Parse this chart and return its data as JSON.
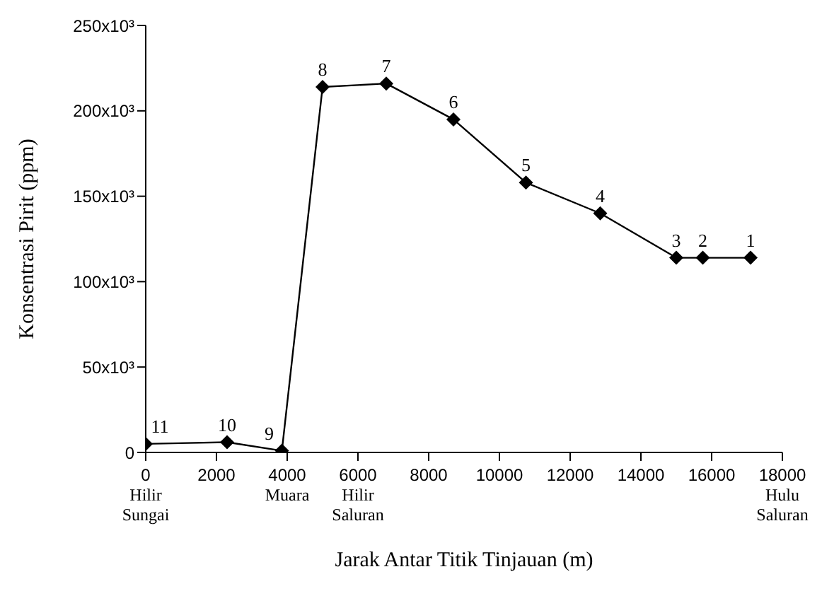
{
  "chart_data": {
    "type": "line",
    "xlabel": "Jarak Antar Titik Tinjauan (m)",
    "ylabel": "Konsentrasi Pirit (ppm)",
    "x": [
      0,
      2300,
      3850,
      5000,
      6800,
      8700,
      10750,
      12850,
      15000,
      15750,
      17100
    ],
    "series": [
      {
        "color": "#000000",
        "values": [
          5000,
          6000,
          1000,
          214000,
          216000,
          195000,
          158000,
          140000,
          114000,
          114000,
          114000
        ]
      }
    ],
    "xlim": [
      0,
      18000
    ],
    "xticks": [
      {
        "value": 0,
        "label": "0\nHilir\nSungai"
      },
      2000,
      {
        "value": 4000,
        "label": "4000\nMuara"
      },
      {
        "value": 6000,
        "label": "6000\nHilir\nSaluran"
      },
      8000,
      10000,
      12000,
      14000,
      16000,
      {
        "value": 18000,
        "label": "18000\nHulu\nSaluran"
      }
    ],
    "ylim": [
      0,
      250000
    ],
    "yticks": [
      0,
      {
        "value": 50000,
        "label": "50x10³"
      },
      {
        "value": 100000,
        "label": "100x10³"
      },
      {
        "value": 150000,
        "label": "150x10³"
      },
      {
        "value": 200000,
        "label": "200x10³"
      },
      {
        "value": 250000,
        "label": "250x10³"
      }
    ],
    "marker": "diamond",
    "line_style": "solid",
    "grid": false,
    "legend": false,
    "annotations": [
      {
        "text": "11",
        "x": 0,
        "y": 5000
      },
      {
        "text": "10",
        "x": 2300,
        "y": 6000
      },
      {
        "text": "9",
        "x": 3850,
        "y": 1000
      },
      {
        "text": "8",
        "x": 5000,
        "y": 214000
      },
      {
        "text": "7",
        "x": 6800,
        "y": 216000
      },
      {
        "text": "6",
        "x": 8700,
        "y": 195000
      },
      {
        "text": "5",
        "x": 10750,
        "y": 158000
      },
      {
        "text": "4",
        "x": 12850,
        "y": 140000
      },
      {
        "text": "3",
        "x": 15000,
        "y": 114000
      },
      {
        "text": "2",
        "x": 15750,
        "y": 114000
      },
      {
        "text": "1",
        "x": 17100,
        "y": 114000
      }
    ]
  }
}
